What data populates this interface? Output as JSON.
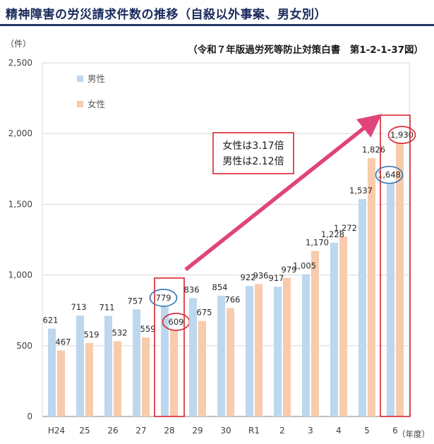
{
  "page": {
    "title": "精神障害の労災請求件数の推移（自殺以外事案、男女別）"
  },
  "chart_data": {
    "type": "bar",
    "title": "精神障害の労災請求件数の推移（自殺以外事案、男女別）",
    "source": "（令和７年版過労死等防止対策白書　第1-2-1-37図）",
    "ylabel": "（件）",
    "xlabel": "（年度）",
    "ylim": [
      0,
      2500
    ],
    "yticks": [
      "0",
      "500",
      "1,000",
      "1,500",
      "2,000",
      "2,500"
    ],
    "ytick_values": [
      0,
      500,
      1000,
      1500,
      2000,
      2500
    ],
    "categories": [
      "H24",
      "25",
      "26",
      "27",
      "28",
      "29",
      "30",
      "R1",
      "2",
      "3",
      "4",
      "5",
      "6"
    ],
    "series": [
      {
        "name": "男性",
        "color": "#bdd7ee",
        "values": [
          621,
          713,
          711,
          757,
          779,
          836,
          854,
          922,
          917,
          1005,
          1228,
          1537,
          1648
        ],
        "labels": [
          "621",
          "713",
          "711",
          "757",
          "779",
          "836",
          "854",
          "922",
          "917",
          "1,005",
          "1,228",
          "1,537",
          "1,648"
        ]
      },
      {
        "name": "女性",
        "color": "#f8cbad",
        "values": [
          467,
          519,
          532,
          559,
          609,
          675,
          766,
          936,
          979,
          1170,
          1272,
          1826,
          1930
        ],
        "labels": [
          "467",
          "519",
          "532",
          "559",
          "609",
          "675",
          "766",
          "936",
          "979",
          "1,170",
          "1,272",
          "1,826",
          "1,930"
        ]
      }
    ],
    "annotation": {
      "lines": [
        "女性は3.17倍",
        "男性は2.12倍"
      ]
    },
    "highlight_categories": [
      "28",
      "6"
    ],
    "colors": {
      "arrow": "#e0447a",
      "highlight": "#d9232d",
      "male_circle": "#2e75b6",
      "female_circle": "#d9232d",
      "axis": "#7f7f7f"
    }
  }
}
